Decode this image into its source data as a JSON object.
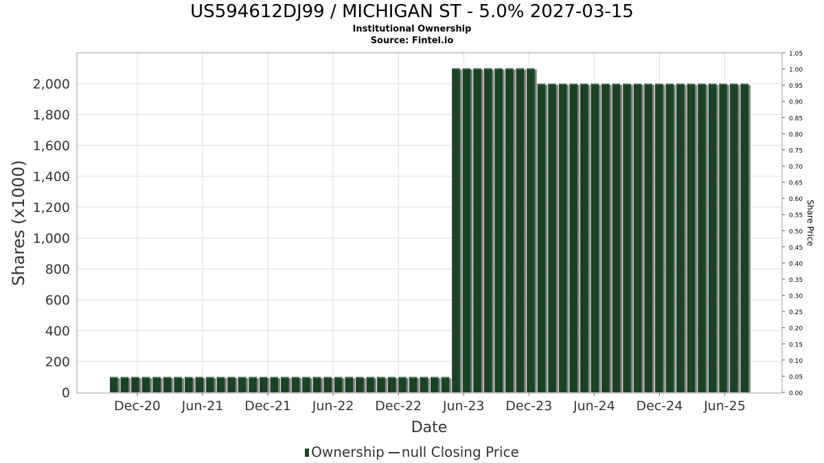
{
  "chart_data": {
    "type": "bar",
    "title": "US594612DJ99 / MICHIGAN ST - 5.0% 2027-03-15",
    "subtitle_1": "Institutional Ownership",
    "subtitle_2": "Source: Fintel.io",
    "xlabel": "Date",
    "ylabel": "Shares (x1000)",
    "y2label": "Share Price",
    "ylim": [
      0,
      2200
    ],
    "y2lim": [
      0,
      1.05
    ],
    "y_ticks": [
      "0",
      "200",
      "400",
      "600",
      "800",
      "1,000",
      "1,200",
      "1,400",
      "1,600",
      "1,800",
      "2,000"
    ],
    "y2_ticks": [
      "0.00",
      "0.05",
      "0.10",
      "0.15",
      "0.20",
      "0.25",
      "0.30",
      "0.35",
      "0.40",
      "0.45",
      "0.50",
      "0.55",
      "0.60",
      "0.65",
      "0.70",
      "0.75",
      "0.80",
      "0.85",
      "0.90",
      "0.95",
      "1.00",
      "1.05"
    ],
    "x_ticks": [
      "Dec-20",
      "Jun-21",
      "Dec-21",
      "Jun-22",
      "Dec-22",
      "Jun-23",
      "Dec-23",
      "Jun-24",
      "Dec-24",
      "Jun-25"
    ],
    "grid": true,
    "legend_position": "bottom",
    "colors": {
      "bar": "#1b4224",
      "bar_highlight": "#3f6a48",
      "bar_shadow": "#808080",
      "grid": "#dddddd",
      "axis_text": "#333333"
    },
    "series": [
      {
        "name": "Ownership",
        "values": [
          100,
          100,
          100,
          100,
          100,
          100,
          100,
          100,
          100,
          100,
          100,
          100,
          100,
          100,
          100,
          100,
          100,
          100,
          100,
          100,
          100,
          100,
          100,
          100,
          100,
          100,
          100,
          100,
          100,
          100,
          100,
          100,
          2100,
          2100,
          2100,
          2100,
          2100,
          2100,
          2100,
          2100,
          2000,
          2000,
          2000,
          2000,
          2000,
          2000,
          2000,
          2000,
          2000,
          2000,
          2000,
          2000,
          2000,
          2000,
          2000,
          2000,
          2000,
          2000,
          2000,
          2000
        ]
      }
    ],
    "legend": {
      "ownership_label": "Ownership",
      "price_label": "null Closing Price"
    }
  }
}
